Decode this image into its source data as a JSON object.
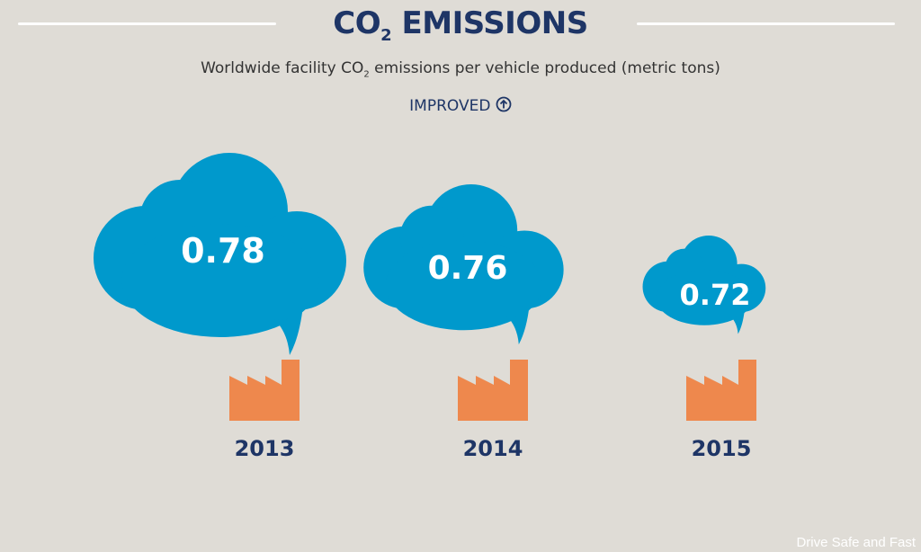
{
  "title": {
    "prefix": "CO",
    "sub": "2",
    "rest": " EMISSIONS"
  },
  "subtitle": {
    "before": "Worldwide facility CO",
    "sub": "2",
    "after": " emissions per vehicle produced (metric tons)"
  },
  "status": {
    "label": "IMPROVED",
    "icon": "circle-arrow-up-icon"
  },
  "watermark": "Drive Safe and Fast",
  "colors": {
    "cloud": "#0099cc",
    "factory": "#ee884d",
    "text": "#1e3566",
    "background": "#dfdcd6"
  },
  "chart_data": {
    "type": "pictograph",
    "categories": [
      "2013",
      "2014",
      "2015"
    ],
    "values": [
      0.78,
      0.76,
      0.72
    ],
    "value_labels": [
      "0.78",
      "0.76",
      "0.72"
    ],
    "unit": "metric tons"
  }
}
